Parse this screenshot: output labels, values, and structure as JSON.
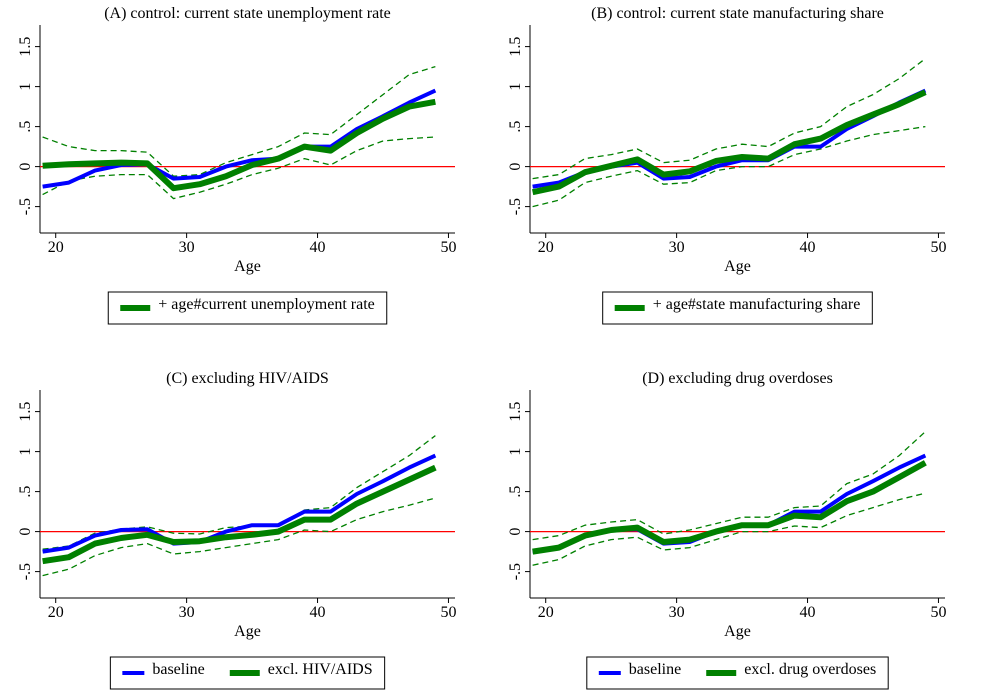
{
  "chart_data": [
    {
      "type": "line",
      "title": "(A) control: current state unemployment rate",
      "x_label": "Age",
      "x": [
        19,
        21,
        23,
        25,
        27,
        29,
        31,
        33,
        35,
        37,
        39,
        41,
        43,
        45,
        47,
        49
      ],
      "xlim": [
        18.8,
        50.5
      ],
      "xticks": [
        20,
        30,
        40,
        50
      ],
      "ylim": [
        -0.83,
        1.77
      ],
      "yticks": [
        {
          "value": -0.5,
          "label": "-.5"
        },
        0,
        {
          "value": 0.5,
          "label": ".5"
        },
        1,
        1.5
      ],
      "yline": 0,
      "yline_color": "#ff0000",
      "series": [
        {
          "color": "#0000ff",
          "line_style": "medium",
          "values": [
            -0.25,
            -0.2,
            -0.05,
            0.02,
            0.03,
            -0.15,
            -0.13,
            0.0,
            0.08,
            0.1,
            0.25,
            0.25,
            0.47,
            0.63,
            0.8,
            0.95
          ]
        },
        {
          "name": "+ age#current unemployment rate",
          "color": "#008000",
          "line_style": "thick",
          "values": [
            0.01,
            0.03,
            0.04,
            0.05,
            0.04,
            -0.27,
            -0.22,
            -0.12,
            0.02,
            0.1,
            0.25,
            0.2,
            0.42,
            0.6,
            0.75,
            0.81
          ]
        },
        {
          "color": "#008000",
          "line_style": "dashed",
          "values": [
            0.37,
            0.25,
            0.2,
            0.2,
            0.18,
            -0.12,
            -0.1,
            0.05,
            0.15,
            0.25,
            0.42,
            0.4,
            0.65,
            0.9,
            1.15,
            1.25
          ]
        },
        {
          "color": "#008000",
          "line_style": "dashed",
          "values": [
            -0.35,
            -0.18,
            -0.12,
            -0.1,
            -0.1,
            -0.4,
            -0.32,
            -0.22,
            -0.1,
            -0.02,
            0.1,
            0.02,
            0.2,
            0.32,
            0.35,
            0.37
          ]
        }
      ]
    },
    {
      "type": "line",
      "title": "(B) control: current state manufacturing share",
      "x_label": "Age",
      "x": [
        19,
        21,
        23,
        25,
        27,
        29,
        31,
        33,
        35,
        37,
        39,
        41,
        43,
        45,
        47,
        49
      ],
      "xlim": [
        18.8,
        50.5
      ],
      "xticks": [
        20,
        30,
        40,
        50
      ],
      "ylim": [
        -0.83,
        1.77
      ],
      "yticks": [
        {
          "value": -0.5,
          "label": "-.5"
        },
        0,
        {
          "value": 0.5,
          "label": ".5"
        },
        1,
        1.5
      ],
      "yline": 0,
      "yline_color": "#ff0000",
      "series": [
        {
          "color": "#0000ff",
          "line_style": "medium",
          "values": [
            -0.25,
            -0.2,
            -0.07,
            0.0,
            0.05,
            -0.15,
            -0.13,
            0.0,
            0.08,
            0.08,
            0.25,
            0.25,
            0.47,
            0.63,
            0.8,
            0.95
          ]
        },
        {
          "name": "+ age#state manufacturing share",
          "color": "#008000",
          "line_style": "thick",
          "values": [
            -0.32,
            -0.25,
            -0.07,
            0.01,
            0.09,
            -0.1,
            -0.06,
            0.07,
            0.12,
            0.1,
            0.28,
            0.35,
            0.52,
            0.65,
            0.78,
            0.93
          ]
        },
        {
          "color": "#008000",
          "line_style": "dashed",
          "values": [
            -0.15,
            -0.1,
            0.1,
            0.15,
            0.22,
            0.05,
            0.08,
            0.22,
            0.28,
            0.25,
            0.42,
            0.5,
            0.75,
            0.9,
            1.1,
            1.35
          ]
        },
        {
          "color": "#008000",
          "line_style": "dashed",
          "values": [
            -0.5,
            -0.42,
            -0.2,
            -0.12,
            -0.05,
            -0.22,
            -0.2,
            -0.05,
            0.0,
            0.0,
            0.15,
            0.22,
            0.32,
            0.4,
            0.45,
            0.5
          ]
        }
      ]
    },
    {
      "type": "line",
      "title": "(C) excluding HIV/AIDS",
      "x_label": "Age",
      "x": [
        19,
        21,
        23,
        25,
        27,
        29,
        31,
        33,
        35,
        37,
        39,
        41,
        43,
        45,
        47,
        49
      ],
      "xlim": [
        18.8,
        50.5
      ],
      "xticks": [
        20,
        30,
        40,
        50
      ],
      "ylim": [
        -0.83,
        1.77
      ],
      "yticks": [
        {
          "value": -0.5,
          "label": "-.5"
        },
        0,
        {
          "value": 0.5,
          "label": ".5"
        },
        1,
        1.5
      ],
      "yline": 0,
      "yline_color": "#ff0000",
      "series": [
        {
          "name": "baseline",
          "color": "#0000ff",
          "line_style": "medium",
          "values": [
            -0.25,
            -0.2,
            -0.05,
            0.02,
            0.03,
            -0.15,
            -0.13,
            0.0,
            0.08,
            0.08,
            0.25,
            0.25,
            0.47,
            0.63,
            0.8,
            0.95
          ]
        },
        {
          "name": "excl. HIV/AIDS",
          "color": "#008000",
          "line_style": "thick",
          "values": [
            -0.37,
            -0.32,
            -0.15,
            -0.08,
            -0.04,
            -0.13,
            -0.12,
            -0.07,
            -0.04,
            0.0,
            0.15,
            0.15,
            0.35,
            0.5,
            0.65,
            0.8
          ]
        },
        {
          "color": "#008000",
          "line_style": "dashed",
          "values": [
            -0.22,
            -0.18,
            -0.02,
            0.03,
            0.06,
            -0.02,
            -0.03,
            0.05,
            0.07,
            0.08,
            0.27,
            0.3,
            0.55,
            0.75,
            0.95,
            1.2
          ]
        },
        {
          "color": "#008000",
          "line_style": "dashed",
          "values": [
            -0.55,
            -0.47,
            -0.3,
            -0.2,
            -0.15,
            -0.28,
            -0.25,
            -0.2,
            -0.15,
            -0.1,
            0.02,
            0.0,
            0.15,
            0.25,
            0.33,
            0.42
          ]
        }
      ]
    },
    {
      "type": "line",
      "title": "(D) excluding drug overdoses",
      "x_label": "Age",
      "x": [
        19,
        21,
        23,
        25,
        27,
        29,
        31,
        33,
        35,
        37,
        39,
        41,
        43,
        45,
        47,
        49
      ],
      "xlim": [
        18.8,
        50.5
      ],
      "xticks": [
        20,
        30,
        40,
        50
      ],
      "ylim": [
        -0.83,
        1.77
      ],
      "yticks": [
        {
          "value": -0.5,
          "label": "-.5"
        },
        0,
        {
          "value": 0.5,
          "label": ".5"
        },
        1,
        1.5
      ],
      "yline": 0,
      "yline_color": "#ff0000",
      "series": [
        {
          "name": "baseline",
          "color": "#0000ff",
          "line_style": "medium",
          "values": [
            -0.25,
            -0.2,
            -0.05,
            0.02,
            0.03,
            -0.15,
            -0.13,
            0.0,
            0.08,
            0.08,
            0.25,
            0.25,
            0.47,
            0.63,
            0.8,
            0.95
          ]
        },
        {
          "name": "excl. drug overdoses",
          "color": "#008000",
          "line_style": "thick",
          "values": [
            -0.25,
            -0.2,
            -0.05,
            0.02,
            0.05,
            -0.13,
            -0.1,
            0.0,
            0.08,
            0.08,
            0.2,
            0.18,
            0.38,
            0.5,
            0.68,
            0.86
          ]
        },
        {
          "color": "#008000",
          "line_style": "dashed",
          "values": [
            -0.1,
            -0.05,
            0.08,
            0.12,
            0.15,
            -0.03,
            0.02,
            0.1,
            0.18,
            0.18,
            0.3,
            0.32,
            0.6,
            0.72,
            0.95,
            1.25
          ]
        },
        {
          "color": "#008000",
          "line_style": "dashed",
          "values": [
            -0.42,
            -0.35,
            -0.18,
            -0.1,
            -0.07,
            -0.23,
            -0.2,
            -0.1,
            0.0,
            0.0,
            0.07,
            0.05,
            0.2,
            0.3,
            0.4,
            0.48
          ]
        }
      ]
    }
  ]
}
